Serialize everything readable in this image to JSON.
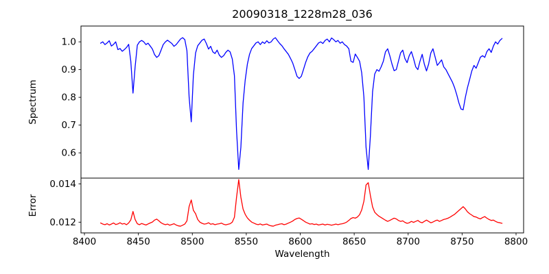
{
  "title": "20090318_1228m28_036",
  "chart_data": {
    "type": "line",
    "title": "20090318_1228m28_036",
    "xlabel": "Wavelength",
    "xlim": [
      8396.8,
      8807.0
    ],
    "xticks": [
      8400,
      8450,
      8500,
      8550,
      8600,
      8650,
      8700,
      8750,
      8800
    ],
    "x_start": 8415,
    "x_step": 2,
    "grid": false,
    "legend": "none",
    "panels": [
      {
        "name": "spectrum",
        "ylabel": "Spectrum",
        "color": "#0000ff",
        "ylim": [
          0.509,
          1.057
        ],
        "yticks": [
          {
            "v": 1.0,
            "label": "1.0"
          },
          {
            "v": 0.9,
            "label": "0.9"
          },
          {
            "v": 0.8,
            "label": "0.8"
          },
          {
            "v": 0.7,
            "label": "0.7"
          },
          {
            "v": 0.6,
            "label": "0.6"
          }
        ],
        "values": [
          0.995,
          1.0,
          0.99,
          0.996,
          1.004,
          0.985,
          0.991,
          1.0,
          0.972,
          0.976,
          0.966,
          0.972,
          0.98,
          0.991,
          0.93,
          0.815,
          0.91,
          0.988,
          1.0,
          1.005,
          1.0,
          0.99,
          0.995,
          0.985,
          0.974,
          0.954,
          0.944,
          0.95,
          0.97,
          0.99,
          1.0,
          1.006,
          1.0,
          0.994,
          0.984,
          0.99,
          1.0,
          1.01,
          1.015,
          1.008,
          0.968,
          0.8,
          0.712,
          0.88,
          0.96,
          0.986,
          0.996,
          1.006,
          1.01,
          0.994,
          0.974,
          0.984,
          0.964,
          0.958,
          0.97,
          0.952,
          0.944,
          0.95,
          0.962,
          0.97,
          0.964,
          0.938,
          0.878,
          0.68,
          0.54,
          0.62,
          0.78,
          0.862,
          0.92,
          0.955,
          0.976,
          0.986,
          0.996,
          1.0,
          0.99,
          1.0,
          0.994,
          1.004,
          0.996,
          1.0,
          1.01,
          1.015,
          1.004,
          0.994,
          0.986,
          0.975,
          0.965,
          0.955,
          0.94,
          0.924,
          0.9,
          0.876,
          0.868,
          0.876,
          0.9,
          0.926,
          0.946,
          0.96,
          0.966,
          0.976,
          0.986,
          0.996,
          1.0,
          0.994,
          1.005,
          1.01,
          1.0,
          1.014,
          1.008,
          1.0,
          1.005,
          0.995,
          1.0,
          0.99,
          0.985,
          0.975,
          0.93,
          0.926,
          0.956,
          0.944,
          0.93,
          0.888,
          0.8,
          0.62,
          0.54,
          0.66,
          0.82,
          0.884,
          0.9,
          0.894,
          0.91,
          0.93,
          0.964,
          0.975,
          0.95,
          0.92,
          0.896,
          0.9,
          0.93,
          0.96,
          0.97,
          0.94,
          0.925,
          0.95,
          0.965,
          0.94,
          0.91,
          0.9,
          0.93,
          0.955,
          0.92,
          0.895,
          0.92,
          0.96,
          0.975,
          0.945,
          0.915,
          0.925,
          0.935,
          0.91,
          0.9,
          0.885,
          0.87,
          0.855,
          0.835,
          0.81,
          0.78,
          0.758,
          0.755,
          0.8,
          0.835,
          0.865,
          0.895,
          0.915,
          0.905,
          0.925,
          0.945,
          0.95,
          0.944,
          0.965,
          0.975,
          0.962,
          0.985,
          1.0,
          0.992,
          1.005,
          1.012
        ]
      },
      {
        "name": "error",
        "ylabel": "Error",
        "color": "#ff0000",
        "ylim": [
          0.01144,
          0.0143
        ],
        "yticks": [
          {
            "v": 0.014,
            "label": "0.014"
          },
          {
            "v": 0.012,
            "label": "0.012"
          }
        ],
        "values": [
          0.01196,
          0.0119,
          0.01187,
          0.01192,
          0.01185,
          0.0119,
          0.01196,
          0.01188,
          0.01191,
          0.01197,
          0.0119,
          0.01193,
          0.01187,
          0.01196,
          0.01212,
          0.01256,
          0.01214,
          0.01192,
          0.01187,
          0.01193,
          0.01189,
          0.01185,
          0.01191,
          0.01196,
          0.01201,
          0.01211,
          0.01216,
          0.01207,
          0.01197,
          0.01191,
          0.01187,
          0.0119,
          0.01184,
          0.01188,
          0.01192,
          0.01185,
          0.01181,
          0.01179,
          0.01184,
          0.0119,
          0.01207,
          0.01282,
          0.01316,
          0.01262,
          0.01244,
          0.01214,
          0.012,
          0.01194,
          0.0119,
          0.01192,
          0.01197,
          0.01189,
          0.01192,
          0.01187,
          0.0119,
          0.01192,
          0.01195,
          0.01189,
          0.01186,
          0.01189,
          0.01192,
          0.012,
          0.01226,
          0.0133,
          0.01422,
          0.0133,
          0.01268,
          0.01241,
          0.01222,
          0.0121,
          0.012,
          0.01195,
          0.0119,
          0.01187,
          0.01191,
          0.01185,
          0.01188,
          0.0119,
          0.01184,
          0.01181,
          0.01179,
          0.01184,
          0.01187,
          0.0119,
          0.01192,
          0.01187,
          0.0119,
          0.01195,
          0.012,
          0.01206,
          0.01214,
          0.01219,
          0.01222,
          0.01215,
          0.01208,
          0.012,
          0.01195,
          0.0119,
          0.01192,
          0.01188,
          0.0119,
          0.01185,
          0.01188,
          0.0119,
          0.01185,
          0.01189,
          0.01187,
          0.01184,
          0.01187,
          0.0119,
          0.01187,
          0.0119,
          0.01192,
          0.01195,
          0.012,
          0.01209,
          0.01219,
          0.01224,
          0.01221,
          0.01227,
          0.01239,
          0.01264,
          0.0131,
          0.01394,
          0.01406,
          0.0134,
          0.0128,
          0.01252,
          0.0124,
          0.01231,
          0.01224,
          0.01217,
          0.0121,
          0.01204,
          0.01209,
          0.01215,
          0.01221,
          0.01217,
          0.01209,
          0.01204,
          0.01207,
          0.01199,
          0.01194,
          0.01197,
          0.01204,
          0.01199,
          0.01204,
          0.01209,
          0.01201,
          0.01197,
          0.01204,
          0.01211,
          0.01204,
          0.01197,
          0.01201,
          0.01207,
          0.01211,
          0.01204,
          0.01209,
          0.01214,
          0.01217,
          0.01221,
          0.01227,
          0.01234,
          0.01241,
          0.01251,
          0.01261,
          0.01271,
          0.01281,
          0.01269,
          0.01254,
          0.01244,
          0.01237,
          0.01229,
          0.01227,
          0.01221,
          0.01217,
          0.01224,
          0.01229,
          0.01221,
          0.01214,
          0.01209,
          0.01211,
          0.01204,
          0.01199,
          0.01197,
          0.01194
        ]
      }
    ]
  }
}
